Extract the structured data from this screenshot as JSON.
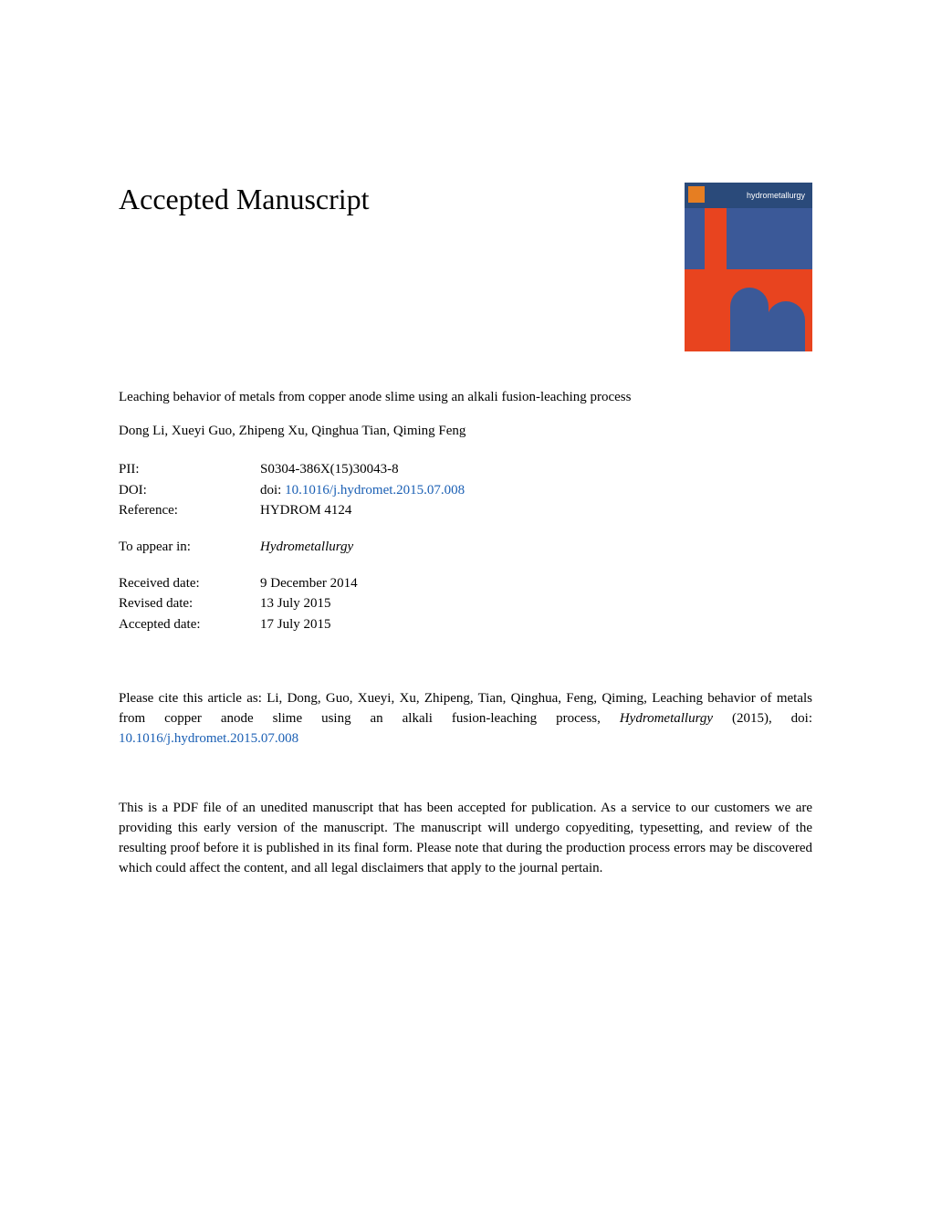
{
  "heading": "Accepted Manuscript",
  "journal_cover": {
    "name": "hydrometallurgy",
    "background_color": "#3b5998",
    "accent_color": "#e8441f",
    "top_bar_color": "#2a4a7a"
  },
  "article": {
    "title": "Leaching behavior of metals from copper anode slime using an alkali fusion-leaching process",
    "authors": "Dong Li, Xueyi Guo, Zhipeng Xu, Qinghua Tian, Qiming Feng"
  },
  "metadata": {
    "pii_label": "PII:",
    "pii_value": "S0304-386X(15)30043-8",
    "doi_label": "DOI:",
    "doi_prefix": "doi: ",
    "doi_value": "10.1016/j.hydromet.2015.07.008",
    "reference_label": "Reference:",
    "reference_value": "HYDROM 4124"
  },
  "appear": {
    "label": "To appear in:",
    "value": "Hydrometallurgy"
  },
  "dates": {
    "received_label": "Received date:",
    "received_value": "9 December 2014",
    "revised_label": "Revised date:",
    "revised_value": "13 July 2015",
    "accepted_label": "Accepted date:",
    "accepted_value": "17 July 2015"
  },
  "citation": {
    "text_before": "Please cite this article as: Li, Dong, Guo, Xueyi, Xu, Zhipeng, Tian, Qinghua, Feng, Qiming, Leaching behavior of metals from copper anode slime using an alkali fusion-leaching process, ",
    "journal": "Hydrometallurgy",
    "text_middle": " (2015), doi: ",
    "doi": "10.1016/j.hydromet.2015.07.008"
  },
  "disclaimer": "This is a PDF file of an unedited manuscript that has been accepted for publication. As a service to our customers we are providing this early version of the manuscript. The manuscript will undergo copyediting, typesetting, and review of the resulting proof before it is published in its final form. Please note that during the production process errors may be discovered which could affect the content, and all legal disclaimers that apply to the journal pertain.",
  "styling": {
    "link_color": "#1a5fb4",
    "text_color": "#000000",
    "background_color": "#ffffff",
    "heading_fontsize": 32,
    "body_fontsize": 15
  }
}
